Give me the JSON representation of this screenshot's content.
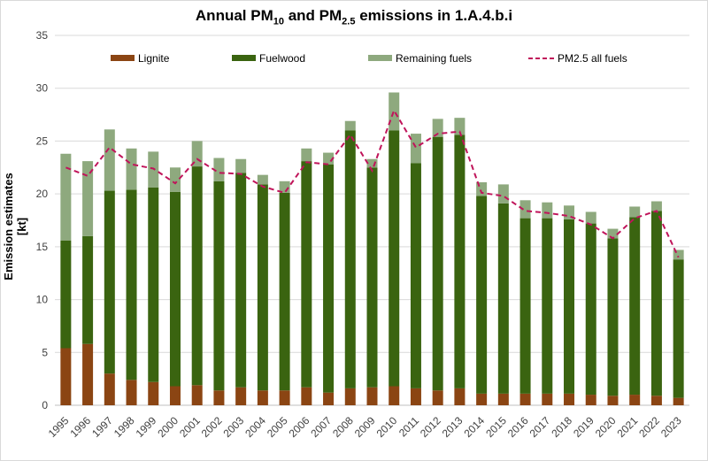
{
  "chart_data": {
    "type": "bar",
    "title_main": "Annual PM",
    "title_sub1": "10",
    "title_mid": " and PM",
    "title_sub2": "2.5",
    "title_end": " emissions in 1.A.4.b.i",
    "ylabel": "Emission estimates [kt]",
    "ylim": [
      0,
      35
    ],
    "yticks": [
      0,
      5,
      10,
      15,
      20,
      25,
      30,
      35
    ],
    "grid": true,
    "legend_position": "top",
    "categories": [
      "1995",
      "1996",
      "1997",
      "1998",
      "1999",
      "2000",
      "2001",
      "2002",
      "2003",
      "2004",
      "2005",
      "2006",
      "2007",
      "2008",
      "2009",
      "2010",
      "2011",
      "2012",
      "2013",
      "2014",
      "2015",
      "2016",
      "2017",
      "2018",
      "2019",
      "2020",
      "2021",
      "2022",
      "2023"
    ],
    "series": [
      {
        "name": "Lignite",
        "kind": "bar",
        "color": "#8B4513",
        "values": [
          5.4,
          5.8,
          3.0,
          2.4,
          2.2,
          1.8,
          1.9,
          1.4,
          1.7,
          1.4,
          1.4,
          1.7,
          1.2,
          1.6,
          1.7,
          1.8,
          1.6,
          1.4,
          1.6,
          1.1,
          1.1,
          1.1,
          1.1,
          1.1,
          1.0,
          0.9,
          1.0,
          0.9,
          0.7
        ]
      },
      {
        "name": "Fuelwood",
        "kind": "bar",
        "color": "#3A6410",
        "values": [
          10.2,
          10.2,
          17.3,
          18.0,
          18.4,
          18.4,
          20.7,
          19.8,
          20.3,
          19.5,
          18.7,
          21.4,
          21.6,
          24.4,
          20.8,
          24.2,
          21.3,
          24.0,
          24.0,
          18.7,
          18.0,
          16.6,
          16.6,
          16.5,
          16.2,
          14.9,
          16.8,
          17.5,
          13.1
        ]
      },
      {
        "name": "Remaining fuels",
        "kind": "bar",
        "color": "#8EA97E",
        "values": [
          8.2,
          7.1,
          5.8,
          3.9,
          3.4,
          2.3,
          2.4,
          2.2,
          1.3,
          0.9,
          1.1,
          1.2,
          1.1,
          0.9,
          0.8,
          3.6,
          2.8,
          1.7,
          1.6,
          1.3,
          1.8,
          1.7,
          1.5,
          1.3,
          1.1,
          0.9,
          1.0,
          0.9,
          0.9
        ]
      },
      {
        "name": "PM2.5 all fuels",
        "kind": "line",
        "color": "#C0145A",
        "values": [
          22.5,
          21.7,
          24.4,
          22.8,
          22.4,
          21.0,
          23.3,
          22.0,
          21.9,
          20.7,
          20.1,
          23.0,
          22.8,
          25.6,
          22.2,
          27.9,
          24.4,
          25.7,
          25.9,
          20.1,
          19.8,
          18.4,
          18.2,
          17.9,
          17.1,
          15.8,
          17.7,
          18.4,
          14.0
        ]
      }
    ]
  }
}
